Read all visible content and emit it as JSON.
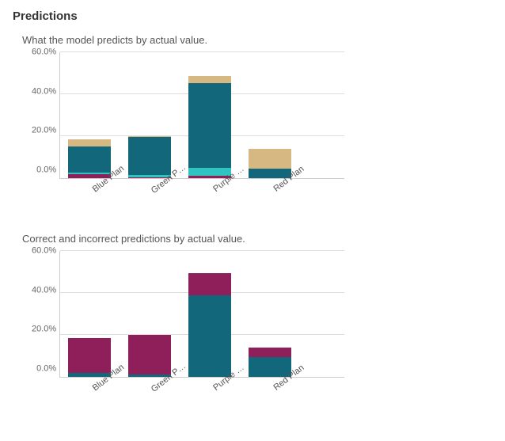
{
  "section_title": "Predictions",
  "y_axis": {
    "max": 60,
    "ticks": [
      "60.0%",
      "40.0%",
      "20.0%",
      "0.0%"
    ]
  },
  "colors": {
    "teal_dark": "#12677a",
    "teal_light": "#2fc4bf",
    "tan": "#d5b882",
    "magenta": "#8e1f5a",
    "grid": "#dddddd",
    "axis": "#cccccc"
  },
  "chart1": {
    "subtitle": "What the model predicts by actual value.",
    "type": "stacked-bar",
    "categories": [
      "Blue Plan",
      "Green P…",
      "Purple …",
      "Red Plan"
    ],
    "series_order": [
      "magenta",
      "teal_light",
      "teal_dark",
      "tan"
    ],
    "stacks": [
      {
        "magenta": 2.0,
        "teal_light": 0.5,
        "teal_dark": 12.5,
        "tan": 3.5
      },
      {
        "magenta": 0.5,
        "teal_light": 1.0,
        "teal_dark": 18.0,
        "tan": 0.5
      },
      {
        "magenta": 1.0,
        "teal_light": 4.0,
        "teal_dark": 40.0,
        "tan": 3.5
      },
      {
        "magenta": 0.0,
        "teal_light": 0.0,
        "teal_dark": 4.5,
        "tan": 9.5
      }
    ]
  },
  "chart2": {
    "subtitle": "Correct and incorrect predictions by actual value.",
    "type": "stacked-bar",
    "categories": [
      "Blue Plan",
      "Green P…",
      "Purple …",
      "Red Plan"
    ],
    "series_order": [
      "teal_dark",
      "magenta"
    ],
    "stacks": [
      {
        "teal_dark": 2.0,
        "magenta": 16.5
      },
      {
        "teal_dark": 1.0,
        "magenta": 19.0
      },
      {
        "teal_dark": 38.5,
        "magenta": 10.5
      },
      {
        "teal_dark": 9.5,
        "magenta": 4.5
      }
    ]
  }
}
